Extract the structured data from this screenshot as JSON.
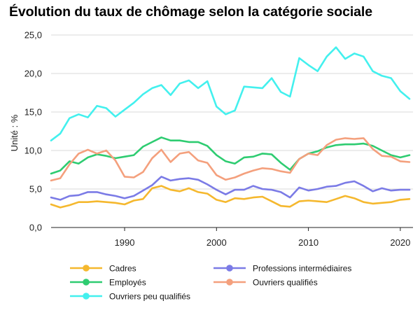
{
  "title": "Évolution du taux de chômage selon la catégorie sociale",
  "chart_data": {
    "type": "line",
    "ylabel": "Unité : %",
    "xlabel": "",
    "xlim": [
      1982,
      2021
    ],
    "ylim": [
      0,
      25
    ],
    "x_ticks": [
      1990,
      2000,
      2010,
      2020
    ],
    "y_ticks": [
      "0,0",
      "5,0",
      "10,0",
      "15,0",
      "20,0",
      "25,0"
    ],
    "grid": "horizontal",
    "legend_position": "bottom",
    "x": [
      1982,
      1983,
      1984,
      1985,
      1986,
      1987,
      1988,
      1989,
      1990,
      1991,
      1992,
      1993,
      1994,
      1995,
      1996,
      1997,
      1998,
      1999,
      2000,
      2001,
      2002,
      2003,
      2004,
      2005,
      2006,
      2007,
      2008,
      2009,
      2010,
      2011,
      2012,
      2013,
      2014,
      2015,
      2016,
      2017,
      2018,
      2019,
      2020,
      2021
    ],
    "series": [
      {
        "name": "Cadres",
        "color": "#f5b82e",
        "values": [
          3.0,
          2.6,
          2.9,
          3.3,
          3.3,
          3.4,
          3.3,
          3.2,
          3.0,
          3.5,
          3.7,
          5.1,
          5.4,
          4.9,
          4.7,
          5.1,
          4.6,
          4.4,
          3.6,
          3.3,
          3.8,
          3.7,
          3.9,
          4.0,
          3.4,
          2.8,
          2.7,
          3.4,
          3.5,
          3.4,
          3.3,
          3.7,
          4.1,
          3.8,
          3.3,
          3.1,
          3.2,
          3.3,
          3.6,
          3.7
        ]
      },
      {
        "name": "Professions intermédiaires",
        "color": "#7b7be6",
        "values": [
          3.9,
          3.6,
          4.1,
          4.2,
          4.6,
          4.6,
          4.3,
          4.1,
          3.8,
          4.1,
          4.8,
          5.5,
          6.6,
          6.1,
          6.3,
          6.4,
          6.2,
          5.6,
          4.9,
          4.3,
          4.9,
          4.9,
          5.4,
          5.0,
          4.9,
          4.6,
          3.9,
          5.2,
          4.8,
          5.0,
          5.3,
          5.4,
          5.8,
          6.0,
          5.4,
          4.7,
          5.1,
          4.8,
          4.9,
          4.9
        ]
      },
      {
        "name": "Employés",
        "color": "#2ecc71",
        "values": [
          7.0,
          7.4,
          8.6,
          8.3,
          9.1,
          9.5,
          9.3,
          9.0,
          9.2,
          9.4,
          10.5,
          11.1,
          11.7,
          11.3,
          11.3,
          11.1,
          11.1,
          10.6,
          9.4,
          8.6,
          8.3,
          9.1,
          9.2,
          9.6,
          9.5,
          8.4,
          7.5,
          8.9,
          9.6,
          9.9,
          10.4,
          10.7,
          10.8,
          10.8,
          10.9,
          10.6,
          10.0,
          9.4,
          9.1,
          9.4
        ]
      },
      {
        "name": "Ouvriers qualifiés",
        "color": "#f4a07d",
        "values": [
          6.1,
          6.4,
          8.2,
          9.6,
          10.1,
          9.6,
          10.0,
          8.7,
          6.6,
          6.5,
          7.2,
          9.0,
          10.1,
          8.5,
          9.6,
          9.8,
          8.7,
          8.4,
          6.8,
          6.2,
          6.5,
          7.0,
          7.4,
          7.7,
          7.6,
          7.3,
          7.1,
          8.9,
          9.6,
          9.4,
          10.7,
          11.4,
          11.6,
          11.5,
          11.6,
          10.2,
          9.3,
          9.2,
          8.6,
          8.5
        ]
      },
      {
        "name": "Ouvriers peu qualifiés",
        "color": "#43f0ee",
        "values": [
          11.3,
          12.2,
          14.2,
          14.7,
          14.3,
          15.8,
          15.5,
          14.4,
          15.3,
          16.2,
          17.3,
          18.1,
          18.5,
          17.2,
          18.7,
          19.1,
          18.1,
          19.0,
          15.7,
          14.7,
          15.2,
          18.3,
          18.2,
          18.1,
          19.4,
          17.6,
          17.0,
          22.0,
          21.1,
          20.3,
          22.2,
          23.4,
          21.9,
          22.6,
          22.2,
          20.3,
          19.7,
          19.4,
          17.7,
          16.7
        ]
      }
    ]
  }
}
